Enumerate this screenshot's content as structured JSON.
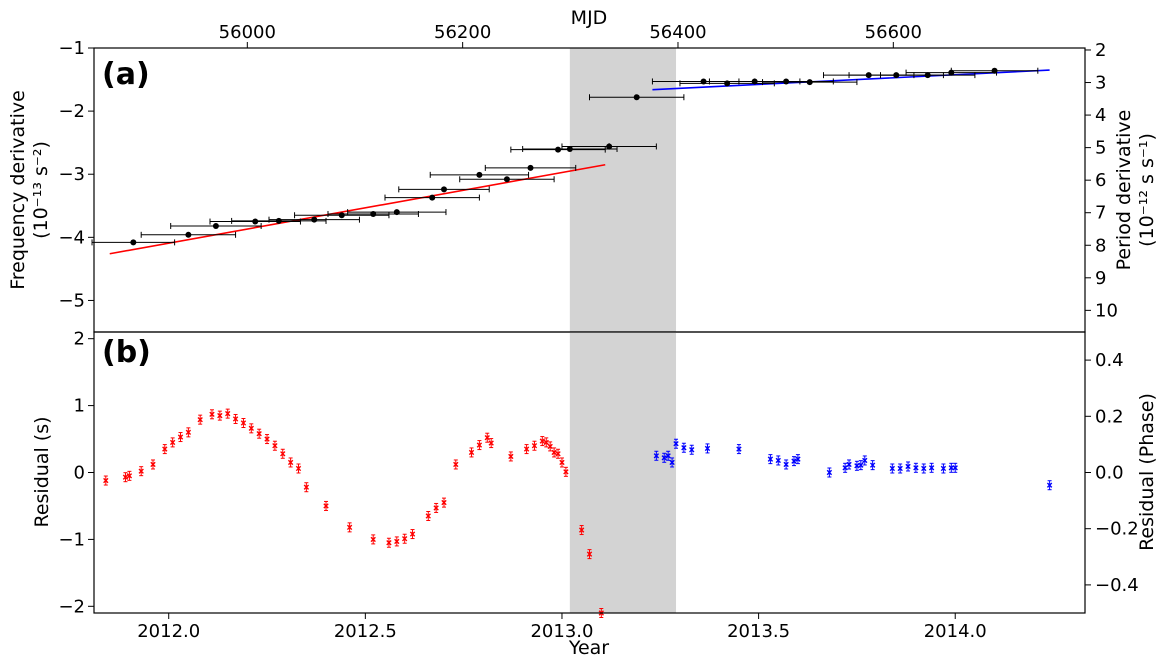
{
  "chart_data": [
    {
      "panel": "(a)",
      "type": "scatter",
      "xlabel_top": "MJD",
      "ylabel_left": [
        "Frequency derivative",
        "(10⁻¹³ s⁻²)"
      ],
      "ylabel_right": [
        "Period derivative",
        "(10⁻¹² s s⁻¹)"
      ],
      "ylim": [
        -5.5,
        -1
      ],
      "yticks": [
        -5,
        -4,
        -3,
        -2,
        -1
      ],
      "right_yticks": [
        2,
        3,
        4,
        5,
        6,
        7,
        8,
        9,
        10
      ],
      "mjd_ticks": [
        56000,
        56200,
        56400,
        56600
      ],
      "shaded_interval": [
        2013.02,
        2013.29
      ],
      "fits": [
        {
          "color": "#ff0000",
          "x": [
            2011.85,
            2013.11
          ],
          "y": [
            -4.26,
            -2.85
          ]
        },
        {
          "color": "#0000ff",
          "x": [
            2013.23,
            2014.24
          ],
          "y": [
            -1.66,
            -1.35
          ]
        }
      ],
      "points": [
        {
          "x": 2011.91,
          "y": -4.08,
          "xerr": 0.105
        },
        {
          "x": 2012.05,
          "y": -3.96,
          "xerr": 0.12
        },
        {
          "x": 2012.12,
          "y": -3.82,
          "xerr": 0.115
        },
        {
          "x": 2012.22,
          "y": -3.75,
          "xerr": 0.115
        },
        {
          "x": 2012.28,
          "y": -3.74,
          "xerr": 0.12
        },
        {
          "x": 2012.37,
          "y": -3.72,
          "xerr": 0.115
        },
        {
          "x": 2012.44,
          "y": -3.65,
          "xerr": 0.12
        },
        {
          "x": 2012.52,
          "y": -3.63,
          "xerr": 0.115
        },
        {
          "x": 2012.58,
          "y": -3.6,
          "xerr": 0.125
        },
        {
          "x": 2012.67,
          "y": -3.37,
          "xerr": 0.12
        },
        {
          "x": 2012.7,
          "y": -3.24,
          "xerr": 0.115
        },
        {
          "x": 2012.79,
          "y": -3.01,
          "xerr": 0.125
        },
        {
          "x": 2012.86,
          "y": -3.08,
          "xerr": 0.12
        },
        {
          "x": 2012.92,
          "y": -2.9,
          "xerr": 0.115
        },
        {
          "x": 2012.99,
          "y": -2.61,
          "xerr": 0.12
        },
        {
          "x": 2013.02,
          "y": -2.6,
          "xerr": 0.12
        },
        {
          "x": 2013.12,
          "y": -2.56,
          "xerr": 0.12,
          "yerr": 0.05
        },
        {
          "x": 2013.19,
          "y": -1.78,
          "xerr": 0.12,
          "yerr": 0.04
        },
        {
          "x": 2013.36,
          "y": -1.53,
          "xerr": 0.13
        },
        {
          "x": 2013.42,
          "y": -1.56,
          "xerr": 0.12
        },
        {
          "x": 2013.49,
          "y": -1.53,
          "xerr": 0.115
        },
        {
          "x": 2013.57,
          "y": -1.53,
          "xerr": 0.12
        },
        {
          "x": 2013.63,
          "y": -1.54,
          "xerr": 0.12
        },
        {
          "x": 2013.78,
          "y": -1.43,
          "xerr": 0.115
        },
        {
          "x": 2013.85,
          "y": -1.43,
          "xerr": 0.12
        },
        {
          "x": 2013.93,
          "y": -1.43,
          "xerr": 0.12
        },
        {
          "x": 2013.99,
          "y": -1.39,
          "xerr": 0.115
        },
        {
          "x": 2014.1,
          "y": -1.36,
          "xerr": 0.11
        }
      ]
    },
    {
      "panel": "(b)",
      "type": "scatter",
      "xlabel": "Year",
      "ylabel_left": "Residual (s)",
      "ylabel_right": "Residual (Phase)",
      "xlim": [
        2011.81,
        2014.33
      ],
      "ylim": [
        -2.1,
        2.1
      ],
      "yticks": [
        -2,
        -1,
        0,
        1,
        2
      ],
      "right_yticks": [
        -0.4,
        -0.2,
        0.0,
        0.2,
        0.4
      ],
      "xticks": [
        2012.0,
        2012.5,
        2013.0,
        2013.5,
        2014.0
      ],
      "series": [
        {
          "color": "#ff0000",
          "x": [
            2011.84,
            2011.89,
            2011.9,
            2011.93,
            2011.96,
            2011.99,
            2012.01,
            2012.03,
            2012.05,
            2012.08,
            2012.11,
            2012.13,
            2012.15,
            2012.17,
            2012.19,
            2012.21,
            2012.23,
            2012.25,
            2012.27,
            2012.29,
            2012.31,
            2012.33,
            2012.35,
            2012.4,
            2012.46,
            2012.52,
            2012.56,
            2012.58,
            2012.6,
            2012.62,
            2012.66,
            2012.68,
            2012.7,
            2012.73,
            2012.77,
            2012.79,
            2012.81,
            2012.82,
            2012.87,
            2012.91,
            2012.93,
            2012.95,
            2012.96,
            2012.97,
            2012.98,
            2012.99,
            2013.0,
            2013.01,
            2013.05,
            2013.07,
            2013.1
          ],
          "y": [
            -0.12,
            -0.07,
            -0.05,
            0.02,
            0.12,
            0.35,
            0.45,
            0.53,
            0.6,
            0.79,
            0.87,
            0.85,
            0.88,
            0.8,
            0.74,
            0.66,
            0.58,
            0.5,
            0.4,
            0.28,
            0.15,
            0.06,
            -0.22,
            -0.5,
            -0.82,
            -1.0,
            -1.05,
            -1.03,
            -0.99,
            -0.92,
            -0.65,
            -0.53,
            -0.45,
            0.12,
            0.3,
            0.41,
            0.52,
            0.44,
            0.24,
            0.35,
            0.4,
            0.47,
            0.45,
            0.39,
            0.3,
            0.28,
            0.15,
            0.01,
            -0.86,
            -1.22,
            -2.1
          ]
        },
        {
          "color": "#0000ff",
          "x": [
            2013.24,
            2013.26,
            2013.27,
            2013.28,
            2013.29,
            2013.31,
            2013.33,
            2013.37,
            2013.45,
            2013.53,
            2013.55,
            2013.57,
            2013.59,
            2013.6,
            2013.68,
            2013.72,
            2013.73,
            2013.75,
            2013.76,
            2013.77,
            2013.79,
            2013.84,
            2013.86,
            2013.88,
            2013.9,
            2013.92,
            2013.94,
            2013.97,
            2013.99,
            2014.0,
            2014.24
          ],
          "y": [
            0.25,
            0.22,
            0.25,
            0.15,
            0.43,
            0.37,
            0.34,
            0.36,
            0.35,
            0.2,
            0.18,
            0.12,
            0.17,
            0.2,
            0.0,
            0.07,
            0.12,
            0.1,
            0.11,
            0.18,
            0.11,
            0.06,
            0.06,
            0.09,
            0.07,
            0.06,
            0.07,
            0.06,
            0.07,
            0.07,
            -0.19
          ]
        }
      ],
      "shaded_interval": [
        2013.02,
        2013.29
      ]
    }
  ]
}
